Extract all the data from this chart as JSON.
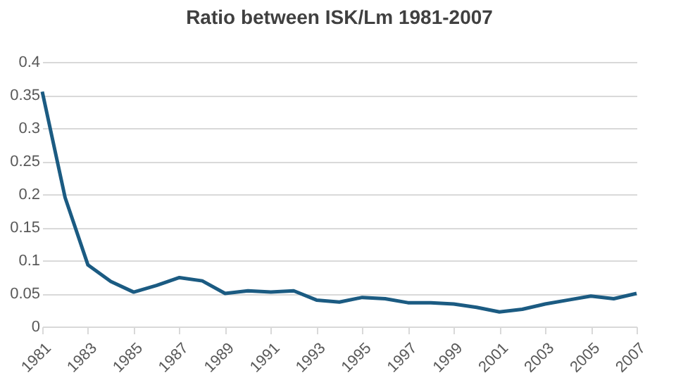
{
  "chart_data": {
    "type": "line",
    "title": "Ratio between ISK/Lm 1981-2007",
    "x": [
      1981,
      1982,
      1983,
      1984,
      1985,
      1986,
      1987,
      1988,
      1989,
      1990,
      1991,
      1992,
      1993,
      1994,
      1995,
      1996,
      1997,
      1998,
      1999,
      2000,
      2001,
      2002,
      2003,
      2004,
      2005,
      2006,
      2007
    ],
    "series": [
      {
        "color": "#1b5b82",
        "values": [
          0.355,
          0.195,
          0.093,
          0.068,
          0.052,
          0.062,
          0.074,
          0.069,
          0.05,
          0.054,
          0.052,
          0.054,
          0.04,
          0.037,
          0.044,
          0.042,
          0.036,
          0.036,
          0.034,
          0.029,
          0.022,
          0.026,
          0.034,
          0.04,
          0.046,
          0.042,
          0.05
        ]
      }
    ],
    "xlim": [
      1981,
      2007
    ],
    "xticks": [
      1981,
      1983,
      1985,
      1987,
      1989,
      1991,
      1993,
      1995,
      1997,
      1999,
      2001,
      2003,
      2005,
      2007
    ],
    "ylim": [
      0,
      0.4
    ],
    "yticks": [
      0,
      0.05,
      0.1,
      0.15,
      0.2,
      0.25,
      0.3,
      0.35,
      0.4
    ],
    "grid": "y",
    "marker": "none",
    "line_style": "solid"
  }
}
